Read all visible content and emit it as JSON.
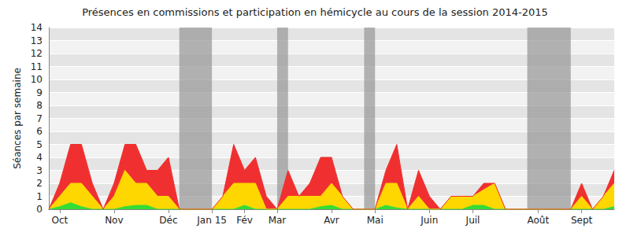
{
  "chart_data": {
    "type": "area",
    "title": "Présences en commissions et participation en hémicycle au cours de la session 2014-2015",
    "y_label": "Séances par semaine",
    "categories": [
      null,
      "Oct",
      null,
      null,
      null,
      null,
      "Nov",
      null,
      null,
      null,
      null,
      "Déc",
      null,
      null,
      null,
      "Jan 15",
      null,
      null,
      "Fév",
      null,
      null,
      "Mar",
      null,
      null,
      null,
      null,
      "Avr",
      null,
      null,
      null,
      "Mai",
      null,
      null,
      null,
      null,
      "Juin",
      null,
      null,
      null,
      "Juil",
      null,
      null,
      null,
      null,
      null,
      "Août",
      null,
      null,
      null,
      "Sept",
      null,
      null,
      null
    ],
    "series": [
      {
        "color": "#33dd33",
        "values": [
          0,
          0.2,
          0.5,
          0.2,
          0,
          0,
          0,
          0.2,
          0.3,
          0.3,
          0,
          0,
          0,
          0,
          0,
          0,
          0,
          0,
          0.3,
          0,
          0,
          0,
          0,
          0,
          0,
          0.2,
          0.3,
          0,
          0,
          0,
          0,
          0.3,
          0.1,
          0,
          0,
          0,
          0,
          0,
          0,
          0.3,
          0.3,
          0,
          0,
          0,
          0,
          0,
          0,
          0,
          0,
          0,
          0,
          0,
          0.2
        ]
      },
      {
        "color": "#ffd700",
        "values": [
          0,
          0.8,
          1.5,
          1.8,
          1,
          0,
          1,
          2.8,
          1.7,
          1.7,
          1,
          1,
          0,
          0,
          0,
          0,
          1,
          2,
          1.7,
          2,
          0,
          0,
          1,
          1,
          1,
          0.8,
          1.7,
          1,
          0,
          0,
          0,
          1.7,
          1.9,
          0,
          1,
          0,
          0,
          1,
          1,
          0.7,
          1.2,
          2,
          0,
          0,
          0,
          0,
          0,
          0,
          0,
          1,
          0,
          1,
          1.8
        ]
      },
      {
        "color": "#f03030",
        "values": [
          0,
          1,
          3,
          3,
          1,
          0,
          1,
          2,
          3,
          1,
          2,
          3,
          0,
          0,
          0,
          0,
          0,
          3,
          1,
          2,
          1,
          0,
          2,
          0,
          1,
          3,
          2,
          0,
          0,
          0,
          0,
          1,
          3,
          0,
          2,
          1,
          0,
          0,
          0,
          0,
          0.5,
          0,
          0,
          0,
          0,
          0,
          0,
          0,
          0,
          1,
          0,
          0,
          1
        ]
      }
    ],
    "shaded_weeks": [
      [
        12,
        15
      ],
      [
        21,
        22
      ],
      [
        29,
        30
      ],
      [
        44,
        48
      ]
    ],
    "stacked": true,
    "ylim": [
      0,
      14
    ],
    "yticks": [
      0,
      1,
      2,
      3,
      4,
      5,
      6,
      7,
      8,
      9,
      10,
      11,
      12,
      13,
      14
    ],
    "grid": true
  }
}
